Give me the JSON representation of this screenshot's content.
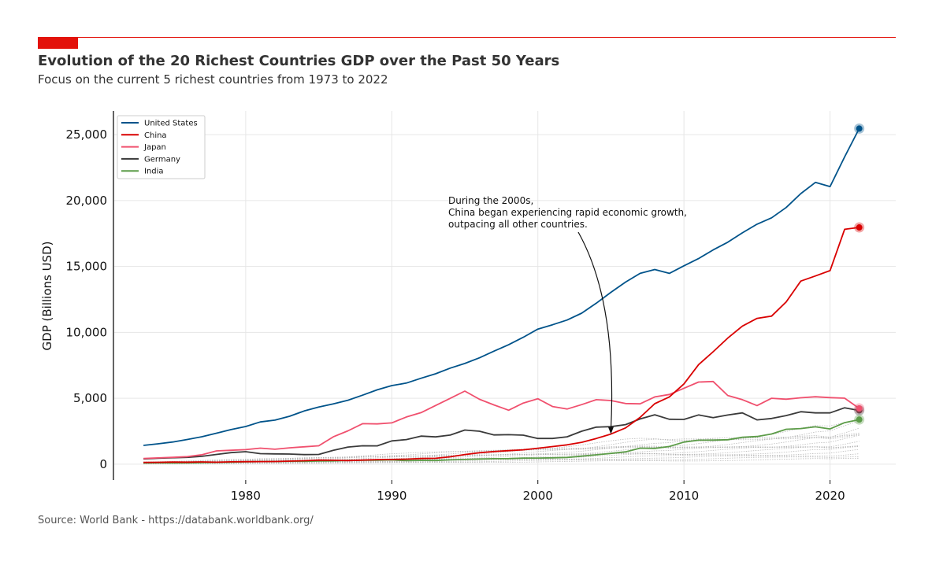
{
  "header": {
    "title": "Evolution of the 20 Richest Countries GDP over the Past 50 Years",
    "subtitle": "Focus on the current 5 richest countries from 1973 to 2022",
    "accent_color": "#e3120b"
  },
  "footer": {
    "source": "Source: World Bank - https://databank.worldbank.org/"
  },
  "chart_data": {
    "type": "line",
    "title": "Evolution of the 20 Richest Countries GDP over the Past 50 Years",
    "subtitle": "Focus on the current 5 richest countries from 1973 to 2022",
    "xlabel": "",
    "ylabel": "GDP (Billions USD)",
    "xlim": [
      1971,
      2024.5
    ],
    "ylim": [
      -1200,
      26800
    ],
    "xticks": [
      1980,
      1990,
      2000,
      2010,
      2020
    ],
    "xtick_labels": [
      "1980",
      "1990",
      "2000",
      "2010",
      "2020"
    ],
    "yticks": [
      0,
      5000,
      10000,
      15000,
      20000,
      25000
    ],
    "ytick_labels": [
      "0",
      "5,000",
      "10,000",
      "15,000",
      "20,000",
      "25,000"
    ],
    "grid": true,
    "legend_position": "top-left",
    "x": [
      1973,
      1974,
      1975,
      1976,
      1977,
      1978,
      1979,
      1980,
      1981,
      1982,
      1983,
      1984,
      1985,
      1986,
      1987,
      1988,
      1989,
      1990,
      1991,
      1992,
      1993,
      1994,
      1995,
      1996,
      1997,
      1998,
      1999,
      2000,
      2001,
      2002,
      2003,
      2004,
      2005,
      2006,
      2007,
      2008,
      2009,
      2010,
      2011,
      2012,
      2013,
      2014,
      2015,
      2016,
      2017,
      2018,
      2019,
      2020,
      2021,
      2022
    ],
    "series": [
      {
        "name": "United States",
        "color": "#00538a",
        "values": [
          1425,
          1545,
          1685,
          1873,
          2082,
          2351,
          2627,
          2857,
          3207,
          3343,
          3634,
          4037,
          4339,
          4580,
          4855,
          5236,
          5642,
          5963,
          6158,
          6520,
          6859,
          7287,
          7640,
          8073,
          8578,
          9063,
          9631,
          10251,
          10582,
          10936,
          11458,
          12214,
          13037,
          13815,
          14475,
          14770,
          14478,
          15049,
          15600,
          16254,
          16843,
          17551,
          18206,
          18695,
          19477,
          20533,
          21381,
          21060,
          23315,
          25463
        ]
      },
      {
        "name": "China",
        "color": "#d90000",
        "values": [
          139,
          144,
          163,
          154,
          175,
          150,
          180,
          191,
          196,
          205,
          231,
          260,
          309,
          300,
          273,
          312,
          348,
          361,
          383,
          427,
          445,
          564,
          734,
          863,
          961,
          1029,
          1094,
          1211,
          1339,
          1471,
          1660,
          1955,
          2286,
          2752,
          3550,
          4594,
          5102,
          6087,
          7552,
          8532,
          9570,
          10476,
          11062,
          11233,
          12310,
          13895,
          14280,
          14688,
          17820,
          17963
        ]
      },
      {
        "name": "Japan",
        "color": "#f0506e",
        "values": [
          432,
          480,
          522,
          576,
          717,
          1010,
          1055,
          1105,
          1218,
          1134,
          1244,
          1318,
          1398,
          2078,
          2532,
          3072,
          3054,
          3133,
          3584,
          3909,
          4454,
          4998,
          5546,
          4923,
          4493,
          4098,
          4636,
          4968,
          4374,
          4183,
          4519,
          4893,
          4832,
          4601,
          4579,
          5106,
          5289,
          5759,
          6233,
          6272,
          5212,
          4897,
          4445,
          5004,
          4931,
          5041,
          5118,
          5048,
          5006,
          4231
        ]
      },
      {
        "name": "Germany",
        "color": "#3a3a3a",
        "values": [
          400,
          450,
          490,
          520,
          600,
          740,
          880,
          950,
          800,
          780,
          770,
          730,
          740,
          1050,
          1300,
          1400,
          1390,
          1770,
          1870,
          2130,
          2070,
          2210,
          2590,
          2500,
          2220,
          2240,
          2200,
          1950,
          1950,
          2080,
          2500,
          2810,
          2850,
          3000,
          3430,
          3750,
          3410,
          3400,
          3740,
          3530,
          3730,
          3890,
          3360,
          3470,
          3690,
          3980,
          3890,
          3890,
          4280,
          4080
        ]
      },
      {
        "name": "India",
        "color": "#5c9c48",
        "values": [
          85,
          99,
          98,
          102,
          121,
          137,
          152,
          186,
          196,
          203,
          222,
          215,
          237,
          253,
          284,
          301,
          301,
          321,
          270,
          288,
          279,
          327,
          360,
          393,
          415,
          421,
          458,
          468,
          485,
          515,
          607,
          709,
          820,
          940,
          1217,
          1199,
          1342,
          1676,
          1823,
          1827,
          1857,
          2039,
          2104,
          2295,
          2651,
          2703,
          2836,
          2672,
          3150,
          3386
        ]
      }
    ],
    "background_series_count": 15,
    "background_series_color": "#aaaaaa",
    "annotation": {
      "lines": [
        "During the 2000s,",
        "China began experiencing rapid economic growth,",
        "outpacing all other countries."
      ],
      "arrow_target": {
        "x": 2005,
        "y": 2286
      }
    }
  }
}
